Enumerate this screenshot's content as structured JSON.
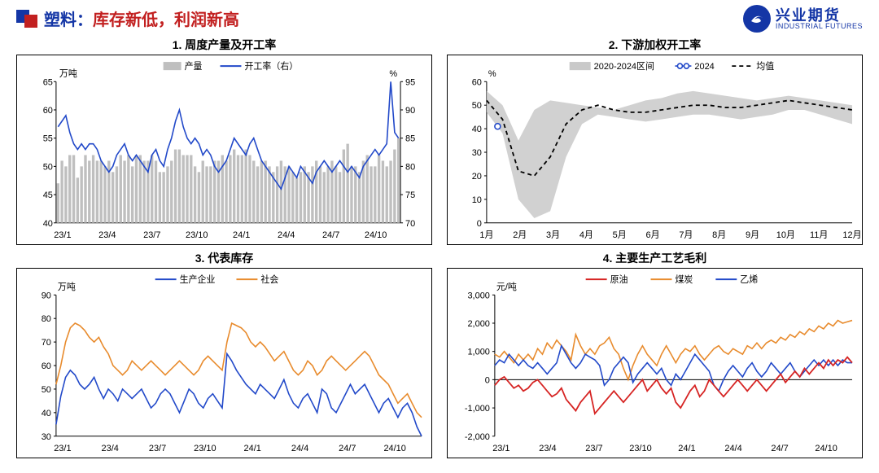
{
  "page": {
    "title_blue": "塑料：",
    "title_red": "库存新低，利润新高",
    "logo_cn": "兴业期货",
    "logo_en": "INDUSTRIAL FUTURES"
  },
  "colors": {
    "brand_blue": "#1436a6",
    "brand_red": "#c22020",
    "axis": "#000000",
    "bar_gray": "#bfbfbf",
    "line_blue": "#2249c9",
    "band_gray": "#c9c9c9",
    "dash_black": "#000000",
    "orange": "#e88b2d",
    "red": "#d62423",
    "blue2": "#2249c9"
  },
  "chart1": {
    "title": "1. 周度产量及开工率",
    "y1_label": "万吨",
    "y2_label": "%",
    "y1_ticks": [
      40,
      45,
      50,
      55,
      60,
      65
    ],
    "y2_ticks": [
      70,
      75,
      80,
      85,
      90,
      95
    ],
    "x_labels": [
      "23/1",
      "23/4",
      "23/7",
      "23/10",
      "24/1",
      "24/4",
      "24/7",
      "24/10"
    ],
    "legend": [
      {
        "name": "产量",
        "color": "#bfbfbf",
        "type": "bar"
      },
      {
        "name": "开工率（右）",
        "color": "#2249c9",
        "type": "line"
      }
    ],
    "bars": [
      47,
      51,
      50,
      52,
      52,
      48,
      50,
      52,
      51,
      52,
      51,
      51,
      50,
      51,
      49,
      50,
      52,
      51,
      52,
      50,
      52,
      52,
      51,
      51,
      52,
      51,
      49,
      49,
      50,
      51,
      53,
      53,
      52,
      52,
      52,
      50,
      49,
      51,
      50,
      50,
      51,
      51,
      52,
      51,
      52,
      53,
      52,
      52,
      53,
      52,
      51,
      50,
      51,
      51,
      50,
      49,
      50,
      51,
      50,
      50,
      49,
      48,
      49,
      50,
      49,
      50,
      51,
      50,
      49,
      50,
      51,
      50,
      49,
      53,
      54,
      50,
      50,
      49,
      51,
      52,
      50,
      50,
      52,
      51,
      50,
      51,
      53,
      55
    ],
    "line": [
      87,
      88,
      89,
      86,
      84,
      83,
      84,
      83,
      84,
      84,
      83,
      81,
      80,
      79,
      80,
      82,
      83,
      84,
      82,
      81,
      82,
      81,
      80,
      79,
      82,
      83,
      81,
      80,
      83,
      85,
      88,
      90,
      87,
      85,
      84,
      85,
      84,
      82,
      83,
      82,
      80,
      79,
      80,
      81,
      83,
      85,
      84,
      83,
      82,
      84,
      85,
      83,
      81,
      80,
      79,
      78,
      77,
      76,
      78,
      80,
      79,
      78,
      80,
      79,
      78,
      77,
      79,
      80,
      81,
      80,
      79,
      80,
      81,
      80,
      79,
      80,
      79,
      78,
      80,
      81,
      82,
      83,
      82,
      83,
      84,
      95,
      86,
      85
    ]
  },
  "chart2": {
    "title": "2. 下游加权开工率",
    "y_label": "%",
    "y_ticks": [
      0,
      10,
      20,
      30,
      40,
      50,
      60
    ],
    "x_labels": [
      "1月",
      "2月",
      "3月",
      "4月",
      "5月",
      "6月",
      "7月",
      "8月",
      "9月",
      "10月",
      "11月",
      "12月"
    ],
    "legend": [
      {
        "name": "2020-2024区间",
        "color": "#c9c9c9",
        "type": "band"
      },
      {
        "name": "2024",
        "color": "#2249c9",
        "type": "linemarker"
      },
      {
        "name": "均值",
        "color": "#000000",
        "type": "dash"
      }
    ],
    "band_upper": [
      56,
      50,
      35,
      48,
      52,
      51,
      50,
      49,
      48,
      50,
      52,
      53,
      55,
      56,
      55,
      54,
      53,
      52,
      53,
      54,
      53,
      52,
      51,
      50
    ],
    "band_lower": [
      47,
      38,
      10,
      2,
      5,
      28,
      42,
      46,
      45,
      44,
      43,
      44,
      45,
      46,
      46,
      45,
      44,
      45,
      46,
      48,
      48,
      46,
      44,
      42
    ],
    "mean": [
      52,
      44,
      22,
      20,
      28,
      42,
      48,
      50,
      48,
      47,
      47,
      48,
      49,
      50,
      50,
      49,
      49,
      50,
      51,
      52,
      51,
      50,
      49,
      48
    ],
    "series2024_x": 0.03,
    "series2024_y": 41
  },
  "chart3": {
    "title": "3. 代表库存",
    "y_label": "万吨",
    "y_ticks": [
      30,
      40,
      50,
      60,
      70,
      80,
      90
    ],
    "x_labels": [
      "23/1",
      "23/4",
      "23/7",
      "23/10",
      "24/1",
      "24/4",
      "24/7",
      "24/10"
    ],
    "legend": [
      {
        "name": "生产企业",
        "color": "#2249c9",
        "type": "line"
      },
      {
        "name": "社会",
        "color": "#e88b2d",
        "type": "line"
      }
    ],
    "series_blue": [
      35,
      47,
      55,
      58,
      56,
      52,
      50,
      52,
      55,
      50,
      46,
      50,
      48,
      45,
      50,
      48,
      46,
      48,
      50,
      46,
      42,
      44,
      48,
      50,
      48,
      44,
      40,
      45,
      50,
      48,
      44,
      42,
      46,
      48,
      45,
      42,
      65,
      62,
      58,
      55,
      52,
      50,
      48,
      52,
      50,
      48,
      46,
      50,
      54,
      48,
      44,
      42,
      46,
      48,
      44,
      40,
      50,
      48,
      42,
      40,
      44,
      48,
      52,
      48,
      50,
      52,
      48,
      44,
      40,
      44,
      46,
      42,
      38,
      42,
      44,
      40,
      34,
      30
    ],
    "series_orange": [
      52,
      60,
      70,
      76,
      78,
      77,
      75,
      72,
      70,
      72,
      68,
      65,
      60,
      58,
      56,
      58,
      62,
      60,
      58,
      60,
      62,
      60,
      58,
      56,
      58,
      60,
      62,
      60,
      58,
      56,
      58,
      62,
      64,
      62,
      60,
      58,
      70,
      78,
      77,
      76,
      74,
      70,
      68,
      70,
      68,
      65,
      62,
      64,
      66,
      62,
      58,
      56,
      58,
      62,
      60,
      56,
      58,
      62,
      64,
      62,
      60,
      58,
      60,
      62,
      64,
      66,
      64,
      60,
      56,
      54,
      52,
      48,
      44,
      46,
      48,
      44,
      40,
      38
    ]
  },
  "chart4": {
    "title": "4. 主要生产工艺毛利",
    "y_label": "元/吨",
    "y_ticks": [
      -2000,
      -1000,
      0,
      1000,
      2000,
      3000
    ],
    "x_labels": [
      "23/1",
      "23/4",
      "23/7",
      "23/10",
      "24/1",
      "24/4",
      "24/7",
      "24/10"
    ],
    "legend": [
      {
        "name": "原油",
        "color": "#d62423",
        "type": "line"
      },
      {
        "name": "煤炭",
        "color": "#e88b2d",
        "type": "line"
      },
      {
        "name": "乙烯",
        "color": "#2249c9",
        "type": "line"
      }
    ],
    "series_red": [
      -200,
      0,
      100,
      -100,
      -300,
      -200,
      -400,
      -300,
      -100,
      0,
      -200,
      -400,
      -600,
      -500,
      -300,
      -700,
      -900,
      -1100,
      -800,
      -600,
      -400,
      -1200,
      -1000,
      -800,
      -600,
      -400,
      -600,
      -800,
      -600,
      -400,
      -200,
      0,
      -400,
      -200,
      0,
      -300,
      -500,
      -300,
      -800,
      -1000,
      -700,
      -400,
      -200,
      -600,
      -400,
      0,
      -200,
      -400,
      -600,
      -400,
      -200,
      0,
      -200,
      -400,
      -200,
      0,
      -200,
      -400,
      -200,
      0,
      200,
      -100,
      100,
      300,
      100,
      400,
      200,
      400,
      600,
      400,
      700,
      500,
      700,
      600,
      800,
      600
    ],
    "series_orange": [
      900,
      800,
      1000,
      800,
      600,
      900,
      700,
      900,
      700,
      1100,
      900,
      1300,
      1100,
      1400,
      1200,
      1000,
      700,
      1600,
      1200,
      900,
      1100,
      900,
      1200,
      1300,
      1500,
      1100,
      900,
      400,
      0,
      500,
      900,
      1200,
      900,
      700,
      500,
      900,
      1200,
      900,
      600,
      900,
      1100,
      1000,
      1200,
      900,
      700,
      900,
      1100,
      1200,
      1000,
      900,
      1100,
      1000,
      900,
      1200,
      1100,
      1300,
      1100,
      1300,
      1400,
      1300,
      1500,
      1400,
      1600,
      1500,
      1700,
      1600,
      1800,
      1700,
      1900,
      1800,
      2000,
      1900,
      2100,
      2000,
      2050,
      2100
    ],
    "series_blue": [
      500,
      700,
      600,
      900,
      700,
      500,
      700,
      500,
      400,
      600,
      400,
      200,
      400,
      600,
      1200,
      900,
      600,
      400,
      600,
      900,
      800,
      700,
      500,
      -200,
      0,
      400,
      600,
      800,
      600,
      -100,
      200,
      400,
      600,
      400,
      200,
      400,
      0,
      -200,
      200,
      0,
      300,
      600,
      900,
      700,
      500,
      300,
      -200,
      -400,
      0,
      300,
      500,
      300,
      100,
      400,
      600,
      300,
      100,
      300,
      600,
      400,
      200,
      400,
      600,
      300,
      100,
      300,
      500,
      700,
      500,
      700,
      500,
      700,
      500,
      700,
      600,
      600
    ]
  }
}
